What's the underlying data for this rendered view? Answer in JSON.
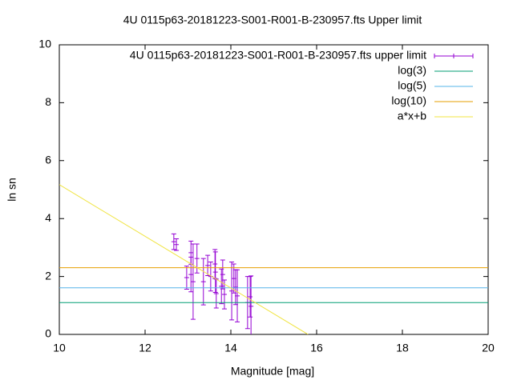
{
  "chart_data": {
    "type": "errorbar",
    "title": "4U 0115p63-20181223-S001-R001-B-230957.fts Upper limit",
    "x_label": "Magnitude [mag]",
    "y_label": "ln sn",
    "xlim": [
      10,
      20
    ],
    "xticks": [
      10,
      12,
      14,
      16,
      18,
      20
    ],
    "ylim": [
      0,
      10
    ],
    "yticks": [
      0,
      2,
      4,
      6,
      8,
      10
    ],
    "legend": "top right",
    "series": [
      {
        "name": "4U 0115p63-20181223-S001-R001-B-230957.fts upper limit",
        "color": "#9400d3",
        "style": "errorbar",
        "x": [
          12.67,
          12.73,
          12.97,
          13.07,
          13.07,
          13.12,
          13.21,
          13.36,
          13.46,
          13.53,
          13.63,
          13.64,
          13.66,
          13.78,
          13.81,
          13.85,
          14.02,
          14.07,
          14.11,
          14.15,
          14.39,
          14.45,
          14.47
        ],
        "values": [
          3.2,
          3.1,
          1.96,
          2.07,
          2.82,
          1.82,
          2.62,
          1.82,
          2.38,
          2.0,
          2.43,
          2.15,
          1.41,
          1.66,
          2.07,
          1.38,
          1.5,
          1.93,
          1.63,
          1.33,
          1.1,
          1.3,
          0.97
        ],
        "errors": [
          0.27,
          0.2,
          0.4,
          0.6,
          0.4,
          1.3,
          0.5,
          0.8,
          0.35,
          0.5,
          0.5,
          0.7,
          0.5,
          0.6,
          0.5,
          0.5,
          1.0,
          0.5,
          0.6,
          0.9,
          0.9,
          0.7,
          1.05
        ]
      },
      {
        "name": "log(3)",
        "color": "#009e73",
        "style": "line",
        "x": [
          10,
          20
        ],
        "values": [
          1.0986,
          1.0986
        ]
      },
      {
        "name": "log(5)",
        "color": "#56b4e9",
        "style": "line",
        "x": [
          10,
          20
        ],
        "values": [
          1.6094,
          1.6094
        ]
      },
      {
        "name": "log(10)",
        "color": "#e69f00",
        "style": "line",
        "x": [
          10,
          20
        ],
        "values": [
          2.3026,
          2.3026
        ]
      },
      {
        "name": "a*x+b",
        "color": "#f0e442",
        "style": "line",
        "x": [
          10,
          15.8
        ],
        "values": [
          5.17,
          0
        ]
      }
    ]
  }
}
